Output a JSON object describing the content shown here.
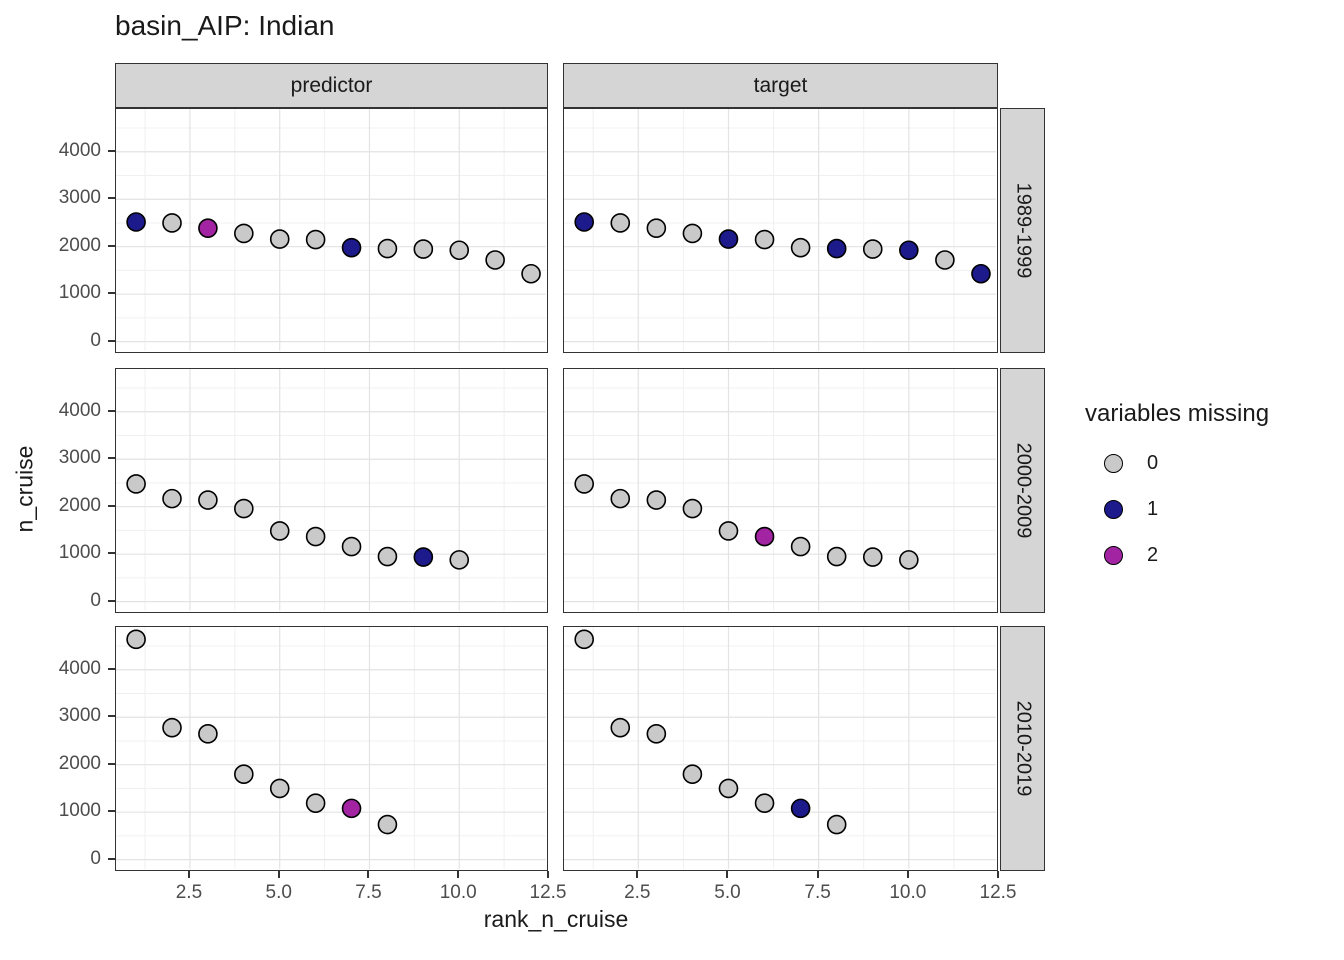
{
  "title": "basin_AIP: Indian",
  "facets": {
    "columns": [
      "predictor",
      "target"
    ],
    "rows": [
      "1989-1999",
      "2000-2009",
      "2010-2019"
    ]
  },
  "axes": {
    "x_title": "rank_n_cruise",
    "y_title": "n_cruise",
    "x_tick_labels": [
      "2.5",
      "5.0",
      "7.5",
      "10.0",
      "12.5"
    ],
    "y_tick_labels": [
      "0",
      "1000",
      "2000",
      "3000",
      "4000"
    ]
  },
  "legend": {
    "title": "variables missing",
    "items": [
      {
        "label": "0",
        "color": "#c9c9c9"
      },
      {
        "label": "1",
        "color": "#1d1a8c"
      },
      {
        "label": "2",
        "color": "#a324a3"
      }
    ]
  },
  "chart_data": {
    "type": "scatter",
    "title": "basin_AIP: Indian",
    "xlabel": "rank_n_cruise",
    "ylabel": "n_cruise",
    "x_domain": [
      0.44,
      12.5
    ],
    "y_domain": [
      -260,
      4900
    ],
    "x_ticks": [
      2.5,
      5.0,
      7.5,
      10.0,
      12.5
    ],
    "y_ticks": [
      0,
      1000,
      2000,
      3000,
      4000
    ],
    "x_minor_ticks": [
      1.25,
      3.75,
      6.25,
      8.75,
      11.25
    ],
    "y_minor_ticks": [
      500,
      1500,
      2500,
      3500,
      4500
    ],
    "facet_columns": [
      "predictor",
      "target"
    ],
    "facet_rows": [
      "1989-1999",
      "2000-2009",
      "2010-2019"
    ],
    "color_by": "variables missing",
    "colors": {
      "0": "#c9c9c9",
      "1": "#1d1a8c",
      "2": "#a324a3"
    },
    "groups": [
      {
        "period": "1989-1999",
        "ranks": [
          1,
          2,
          3,
          4,
          5,
          6,
          7,
          8,
          9,
          10,
          11,
          12
        ],
        "n_cruise": [
          2520,
          2500,
          2390,
          2280,
          2160,
          2150,
          1980,
          1960,
          1950,
          1925,
          1720,
          1430
        ],
        "missing_predictor": [
          1,
          0,
          2,
          0,
          0,
          0,
          1,
          0,
          0,
          0,
          0,
          0
        ],
        "missing_target": [
          1,
          0,
          0,
          0,
          1,
          0,
          0,
          1,
          0,
          1,
          0,
          1
        ]
      },
      {
        "period": "2000-2009",
        "ranks": [
          1,
          2,
          3,
          4,
          5,
          6,
          7,
          8,
          9,
          10
        ],
        "n_cruise": [
          2480,
          2170,
          2140,
          1960,
          1490,
          1370,
          1160,
          950,
          940,
          880
        ],
        "missing_predictor": [
          0,
          0,
          0,
          0,
          0,
          0,
          0,
          0,
          1,
          0
        ],
        "missing_target": [
          0,
          0,
          0,
          0,
          0,
          2,
          0,
          0,
          0,
          0
        ]
      },
      {
        "period": "2010-2019",
        "ranks": [
          1,
          2,
          3,
          4,
          5,
          6,
          7,
          8
        ],
        "n_cruise": [
          4640,
          2780,
          2650,
          1800,
          1500,
          1190,
          1080,
          740
        ],
        "missing_predictor": [
          0,
          0,
          0,
          0,
          0,
          0,
          2,
          0
        ],
        "missing_target": [
          0,
          0,
          0,
          0,
          0,
          0,
          1,
          0
        ]
      }
    ]
  }
}
